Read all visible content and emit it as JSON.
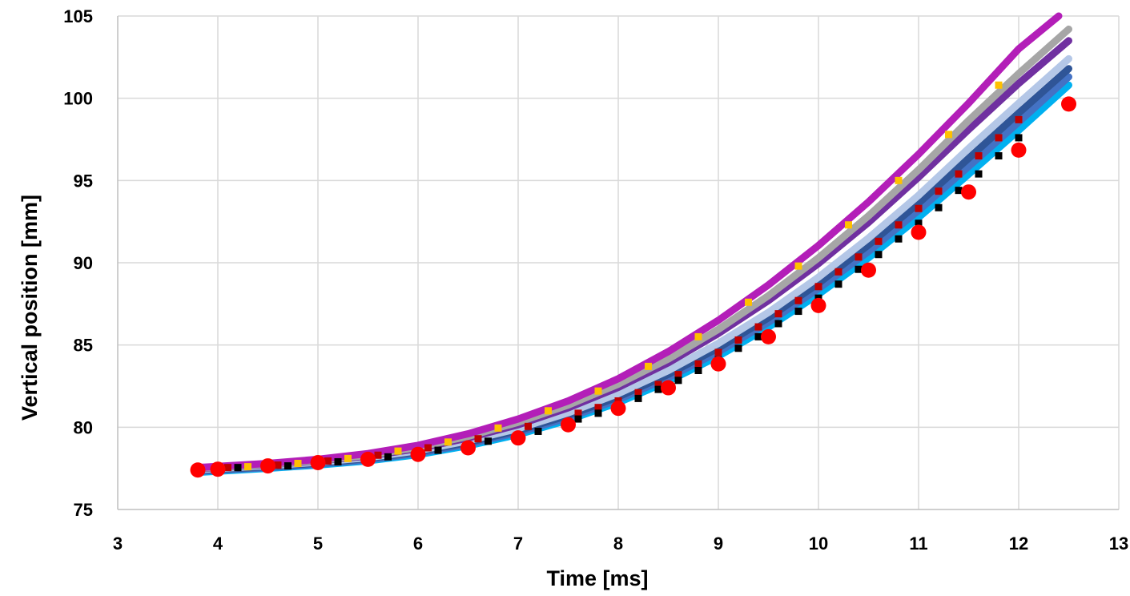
{
  "chart_data": {
    "type": "scatter",
    "title": "",
    "xlabel": "Time [ms]",
    "ylabel": "Vertical position [mm]",
    "xlim": [
      3,
      13
    ],
    "ylim": [
      75,
      105
    ],
    "xticks": [
      "3",
      "4",
      "5",
      "6",
      "7",
      "8",
      "9",
      "10",
      "11",
      "12",
      "13"
    ],
    "yticks": [
      "75",
      "80",
      "85",
      "90",
      "95",
      "100",
      "105"
    ],
    "grid": true,
    "legend": "none",
    "colors": {
      "magenta": "#B31EB8",
      "purple": "#7030A0",
      "silver": "#A6A6A6",
      "light_blue_grey": "#B4C7E7",
      "dark_blue": "#2F5597",
      "mid_blue": "#4472C4",
      "cyan": "#00B0F0",
      "orange_points": "#FFC000",
      "dark_red_points": "#C00000",
      "black_points": "#000000",
      "red_points": "#FF0000"
    },
    "curves": [
      {
        "color": "magenta",
        "x": [
          3.8,
          4.5,
          5,
          5.5,
          6,
          6.5,
          7,
          7.5,
          8,
          8.5,
          9,
          9.5,
          10,
          10.5,
          11,
          11.5,
          12,
          12.4
        ],
        "y": [
          77.55,
          77.8,
          78.05,
          78.4,
          78.9,
          79.6,
          80.5,
          81.6,
          82.95,
          84.6,
          86.5,
          88.65,
          91.05,
          93.7,
          96.6,
          99.7,
          103.0,
          105.0
        ]
      },
      {
        "color": "silver",
        "x": [
          3.8,
          4.5,
          5,
          5.5,
          6,
          6.5,
          7,
          7.5,
          8,
          8.5,
          9,
          9.5,
          10,
          10.5,
          11,
          11.5,
          12,
          12.5
        ],
        "y": [
          77.5,
          77.75,
          77.98,
          78.3,
          78.78,
          79.45,
          80.3,
          81.35,
          82.62,
          84.15,
          85.95,
          88.0,
          90.3,
          92.85,
          95.65,
          98.65,
          101.5,
          104.2
        ]
      },
      {
        "color": "purple",
        "x": [
          3.8,
          4.5,
          5,
          5.5,
          6,
          6.5,
          7,
          7.5,
          8,
          8.5,
          9,
          9.5,
          10,
          10.5,
          11,
          11.5,
          12,
          12.5
        ],
        "y": [
          77.48,
          77.72,
          77.95,
          78.25,
          78.7,
          79.35,
          80.15,
          81.18,
          82.42,
          83.92,
          85.7,
          87.7,
          89.95,
          92.45,
          95.2,
          98.1,
          100.9,
          103.5
        ]
      },
      {
        "color": "light_blue_grey",
        "x": [
          3.8,
          4.5,
          5,
          5.5,
          6,
          6.5,
          7,
          7.5,
          8,
          8.5,
          9,
          9.5,
          10,
          10.5,
          11,
          11.5,
          12,
          12.5
        ],
        "y": [
          77.42,
          77.66,
          77.88,
          78.16,
          78.58,
          79.18,
          79.92,
          80.88,
          82.05,
          83.45,
          85.1,
          86.98,
          89.12,
          91.5,
          94.1,
          96.95,
          99.7,
          102.4
        ]
      },
      {
        "color": "dark_blue",
        "x": [
          3.8,
          4.5,
          5,
          5.5,
          6,
          6.5,
          7,
          7.5,
          8,
          8.5,
          9,
          9.5,
          10,
          10.5,
          11,
          11.5,
          12,
          12.5
        ],
        "y": [
          77.38,
          77.6,
          77.82,
          78.1,
          78.5,
          79.08,
          79.8,
          80.72,
          81.85,
          83.22,
          84.82,
          86.65,
          88.75,
          91.08,
          93.62,
          96.35,
          99.1,
          101.8
        ]
      },
      {
        "color": "mid_blue",
        "x": [
          3.8,
          4.5,
          5,
          5.5,
          6,
          6.5,
          7,
          7.5,
          8,
          8.5,
          9,
          9.5,
          10,
          10.5,
          11,
          11.5,
          12,
          12.5
        ],
        "y": [
          77.32,
          77.55,
          77.76,
          78.02,
          78.42,
          78.98,
          79.68,
          80.58,
          81.68,
          83.02,
          84.58,
          86.38,
          88.42,
          90.68,
          93.18,
          95.85,
          98.55,
          101.3
        ]
      },
      {
        "color": "cyan",
        "x": [
          3.8,
          4.5,
          5,
          5.5,
          6,
          6.5,
          7,
          7.5,
          8,
          8.5,
          9,
          9.5,
          10,
          10.5,
          11,
          11.5,
          12,
          12.5
        ],
        "y": [
          77.26,
          77.5,
          77.7,
          77.96,
          78.34,
          78.88,
          79.56,
          80.44,
          81.5,
          82.8,
          84.32,
          86.08,
          88.08,
          90.3,
          92.75,
          95.38,
          98.05,
          100.8
        ]
      }
    ],
    "series": [
      {
        "color": "orange_points",
        "marker": "square",
        "x": [
          4.3,
          4.8,
          5.3,
          5.8,
          6.3,
          6.8,
          7.3,
          7.8,
          8.3,
          8.8,
          9.3,
          9.8,
          10.3,
          10.8,
          11.3,
          11.8
        ],
        "y": [
          77.6,
          77.8,
          78.1,
          78.55,
          79.1,
          79.95,
          81.0,
          82.2,
          83.7,
          85.5,
          87.6,
          89.8,
          92.3,
          95.0,
          97.8,
          100.8
        ]
      },
      {
        "color": "dark_red_points",
        "marker": "square",
        "x": [
          4.1,
          4.6,
          5.1,
          5.6,
          6.1,
          6.6,
          7.1,
          7.6,
          7.8,
          8.0,
          8.2,
          8.4,
          8.6,
          8.8,
          9.0,
          9.2,
          9.4,
          9.6,
          9.8,
          10.0,
          10.2,
          10.4,
          10.6,
          10.8,
          11.0,
          11.2,
          11.4,
          11.6,
          11.8,
          12.0
        ],
        "y": [
          77.55,
          77.7,
          77.95,
          78.3,
          78.75,
          79.3,
          80.05,
          80.85,
          81.2,
          81.6,
          82.1,
          82.6,
          83.2,
          83.85,
          84.55,
          85.3,
          86.1,
          86.9,
          87.7,
          88.55,
          89.45,
          90.35,
          91.3,
          92.3,
          93.3,
          94.35,
          95.4,
          96.5,
          97.6,
          98.7
        ]
      },
      {
        "color": "black_points",
        "marker": "square",
        "x": [
          4.2,
          4.7,
          5.2,
          5.7,
          6.2,
          6.7,
          7.2,
          7.6,
          7.8,
          8.0,
          8.2,
          8.4,
          8.6,
          8.8,
          9.0,
          9.2,
          9.4,
          9.6,
          9.8,
          10.0,
          10.2,
          10.4,
          10.6,
          10.8,
          11.0,
          11.2,
          11.4,
          11.6,
          11.8,
          12.0
        ],
        "y": [
          77.55,
          77.65,
          77.9,
          78.2,
          78.6,
          79.15,
          79.75,
          80.5,
          80.85,
          81.3,
          81.75,
          82.3,
          82.85,
          83.45,
          84.1,
          84.8,
          85.5,
          86.3,
          87.05,
          87.85,
          88.7,
          89.6,
          90.5,
          91.45,
          92.4,
          93.35,
          94.4,
          95.4,
          96.5,
          97.6
        ]
      },
      {
        "color": "red_points",
        "marker": "circle",
        "x": [
          3.8,
          4.0,
          4.5,
          5.0,
          5.5,
          6.0,
          6.5,
          7.0,
          7.5,
          8.0,
          8.5,
          9.0,
          9.5,
          10.0,
          10.5,
          11.0,
          11.5,
          12.0,
          12.5
        ],
        "y": [
          77.4,
          77.45,
          77.65,
          77.85,
          78.05,
          78.35,
          78.75,
          79.35,
          80.15,
          81.15,
          82.4,
          83.85,
          85.5,
          87.4,
          89.55,
          91.85,
          94.3,
          96.85,
          99.65
        ]
      }
    ]
  }
}
